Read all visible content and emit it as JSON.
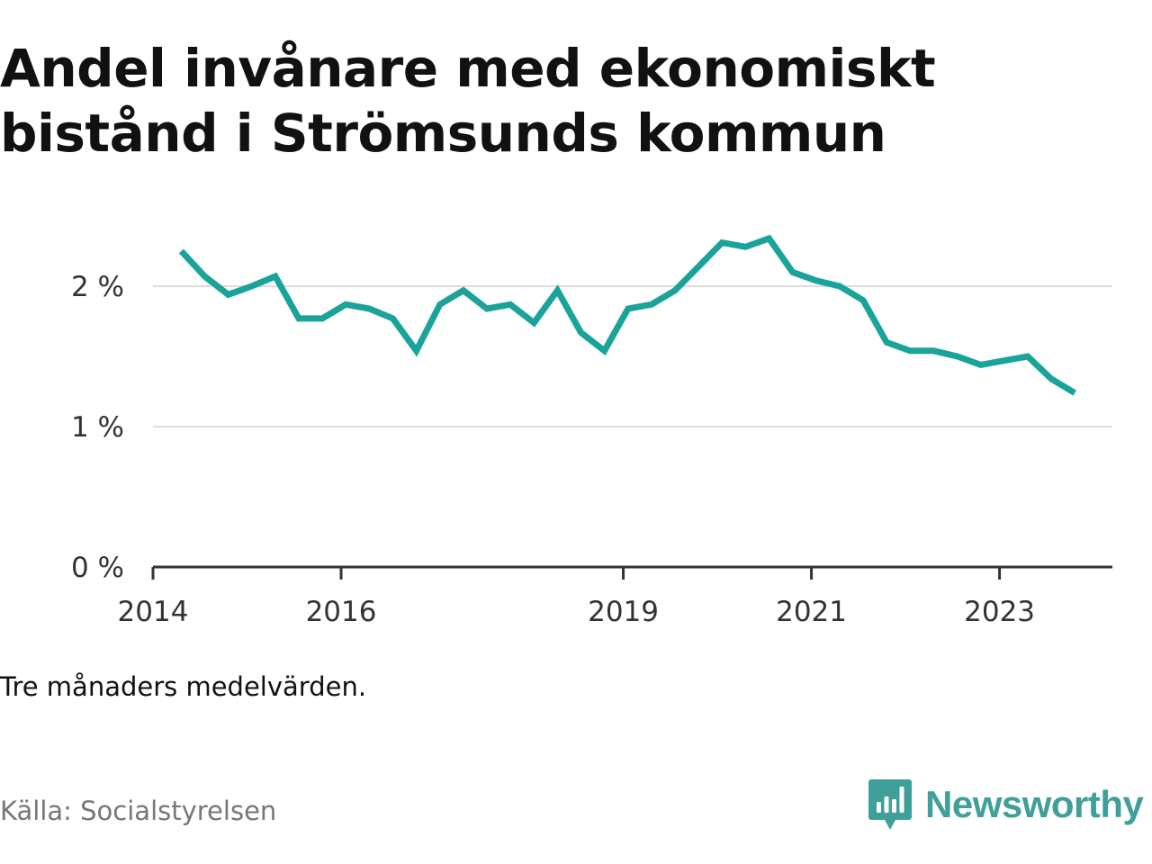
{
  "title": "Andel invånare med ekonomiskt bistånd i Strömsunds kommun",
  "note": "Tre månaders medelvärden.",
  "source": "Källa: Socialstyrelsen",
  "brand": {
    "name": "Newsworthy",
    "logo_icon": "bar-chart-speech-bubble-icon",
    "color": "#3f9f99"
  },
  "chart_data": {
    "type": "line",
    "title": "Andel invånare med ekonomiskt bistånd i Strömsunds kommun",
    "xlabel": "",
    "ylabel": "",
    "line_color": "#1aa39a",
    "grid": true,
    "ylim": [
      0,
      2.5
    ],
    "xlim": [
      2014.0,
      2024.2
    ],
    "y_ticks": [
      {
        "value": 0,
        "label": "0 %"
      },
      {
        "value": 1,
        "label": "1 %"
      },
      {
        "value": 2,
        "label": "2 %"
      }
    ],
    "x_ticks": [
      {
        "value": 2014,
        "label": "2014"
      },
      {
        "value": 2016,
        "label": "2016"
      },
      {
        "value": 2019,
        "label": "2019"
      },
      {
        "value": 2021,
        "label": "2021"
      },
      {
        "value": 2023,
        "label": "2023"
      }
    ],
    "series": [
      {
        "x": [
          2014.3,
          2014.55,
          2014.8,
          2015.05,
          2015.3,
          2015.55,
          2015.8,
          2016.05,
          2016.3,
          2016.55,
          2016.8,
          2017.05,
          2017.3,
          2017.55,
          2017.8,
          2018.05,
          2018.3,
          2018.55,
          2018.8,
          2019.05,
          2019.3,
          2019.55,
          2019.8,
          2020.05,
          2020.3,
          2020.55,
          2020.8,
          2021.05,
          2021.3,
          2021.55,
          2021.8,
          2022.05,
          2022.3,
          2022.55,
          2022.8,
          2023.05,
          2023.3,
          2023.55,
          2023.8
        ],
        "y": [
          2.25,
          2.07,
          1.94,
          2.0,
          2.07,
          1.77,
          1.77,
          1.87,
          1.84,
          1.77,
          1.54,
          1.87,
          1.97,
          1.84,
          1.87,
          1.74,
          1.97,
          1.67,
          1.54,
          1.84,
          1.87,
          1.97,
          2.14,
          2.31,
          2.28,
          2.34,
          2.1,
          2.04,
          2.0,
          1.9,
          1.6,
          1.54,
          1.54,
          1.5,
          1.44,
          1.47,
          1.5,
          1.34,
          1.24
        ]
      }
    ]
  }
}
